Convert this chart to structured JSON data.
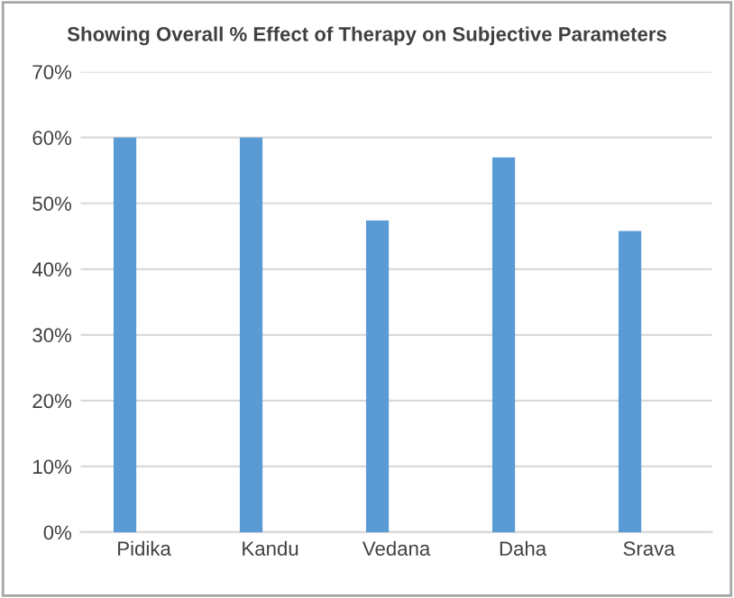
{
  "chart_data": {
    "type": "bar",
    "title": "Showing Overall % Effect of Therapy on Subjective Parameters",
    "categories": [
      "Pidika",
      "Kandu",
      "Vedana",
      "Daha",
      "Srava"
    ],
    "values": [
      60,
      60,
      47.4,
      57,
      45.8
    ],
    "color": "#5b9bd5",
    "ylim": [
      0,
      70
    ],
    "yticks": [
      {
        "value": 0,
        "label": "0%"
      },
      {
        "value": 10,
        "label": "10%"
      },
      {
        "value": 20,
        "label": "20%"
      },
      {
        "value": 30,
        "label": "30%"
      },
      {
        "value": 40,
        "label": "40%"
      },
      {
        "value": 50,
        "label": "50%"
      },
      {
        "value": 60,
        "label": "60%"
      },
      {
        "value": 70,
        "label": "70%"
      }
    ],
    "grid": "y"
  }
}
